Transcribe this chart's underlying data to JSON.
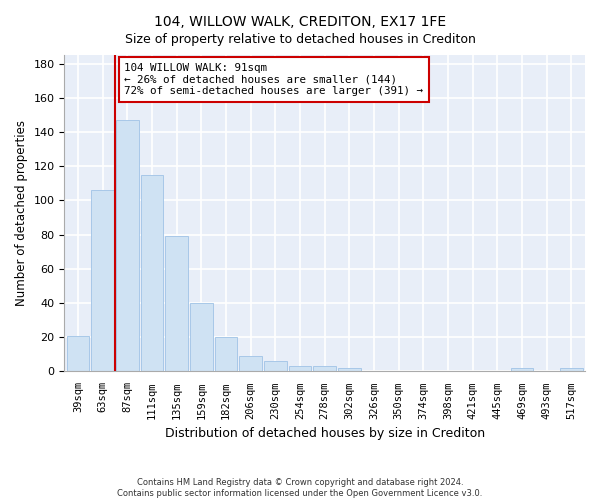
{
  "title": "104, WILLOW WALK, CREDITON, EX17 1FE",
  "subtitle": "Size of property relative to detached houses in Crediton",
  "xlabel": "Distribution of detached houses by size in Crediton",
  "ylabel": "Number of detached properties",
  "bar_labels": [
    "39sqm",
    "63sqm",
    "87sqm",
    "111sqm",
    "135sqm",
    "159sqm",
    "182sqm",
    "206sqm",
    "230sqm",
    "254sqm",
    "278sqm",
    "302sqm",
    "326sqm",
    "350sqm",
    "374sqm",
    "398sqm",
    "421sqm",
    "445sqm",
    "469sqm",
    "493sqm",
    "517sqm"
  ],
  "bar_values": [
    21,
    106,
    147,
    115,
    79,
    40,
    20,
    9,
    6,
    3,
    3,
    2,
    0,
    0,
    0,
    0,
    0,
    0,
    2,
    0,
    2
  ],
  "bar_color": "#cfe2f3",
  "bar_edge_color": "#a8c8e8",
  "vline_x": 1.5,
  "vline_color": "#cc0000",
  "ylim": [
    0,
    185
  ],
  "yticks": [
    0,
    20,
    40,
    60,
    80,
    100,
    120,
    140,
    160,
    180
  ],
  "annotation_box_text": [
    "104 WILLOW WALK: 91sqm",
    "← 26% of detached houses are smaller (144)",
    "72% of semi-detached houses are larger (391) →"
  ],
  "annotation_box_color": "#cc0000",
  "footer_line1": "Contains HM Land Registry data © Crown copyright and database right 2024.",
  "footer_line2": "Contains public sector information licensed under the Open Government Licence v3.0.",
  "bg_color": "#ffffff",
  "plot_bg_color": "#e8eef8",
  "title_fontsize": 10,
  "subtitle_fontsize": 9,
  "grid_color": "#ffffff",
  "grid_linewidth": 1.2
}
